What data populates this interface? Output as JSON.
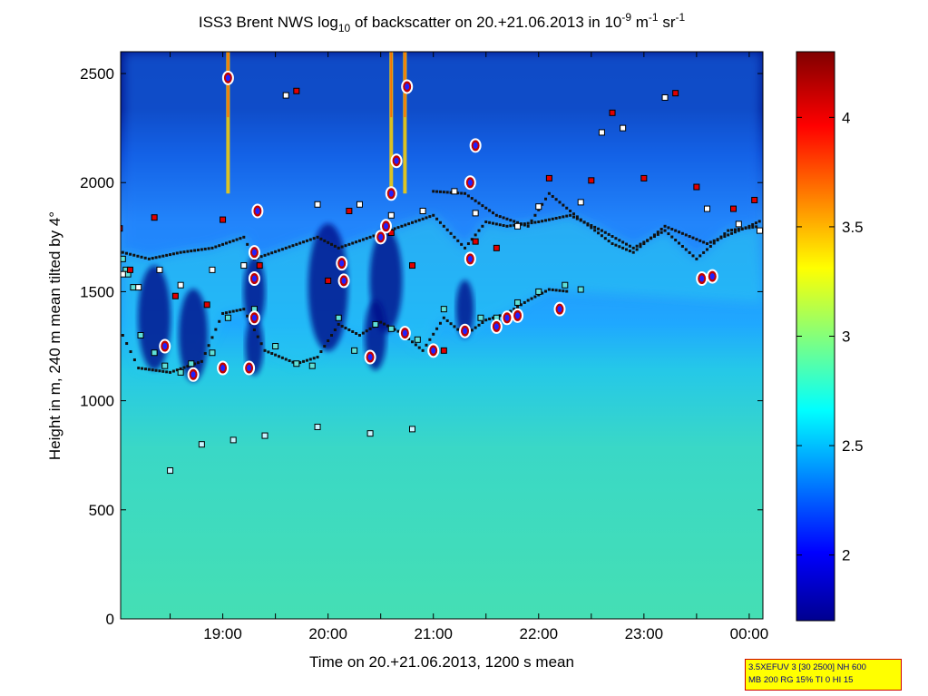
{
  "chart_data": {
    "type": "heatmap",
    "title": {
      "pre": "ISS3 Brent NWS log",
      "sub1": "10",
      "mid1": " of backscatter on 20.+21.06.2013 in 10",
      "sup1": "-9",
      "mid2": " m",
      "sup2": "-1",
      "mid3": " sr",
      "sup3": "-1"
    },
    "xlabel": "Time on 20.+21.06.2013, 1200 s mean",
    "ylabel": "Height in m, 240 m mean tilted by 4°",
    "x_ticks": [
      "19:00",
      "20:00",
      "21:00",
      "22:00",
      "23:00",
      "00:00"
    ],
    "x_tick_hours": [
      19,
      20,
      21,
      22,
      23,
      24
    ],
    "x_range_hours": [
      18.03,
      24.13
    ],
    "y_ticks": [
      "0",
      "500",
      "1000",
      "1500",
      "2000",
      "2500"
    ],
    "y_tick_values": [
      0,
      500,
      1000,
      1500,
      2000,
      2500
    ],
    "ylim": [
      0,
      2600
    ],
    "colorbar": {
      "ticks": [
        "2",
        "2.5",
        "3",
        "3.5",
        "4"
      ],
      "tick_values": [
        2,
        2.5,
        3,
        3.5,
        4
      ],
      "range": [
        1.7,
        4.3
      ],
      "colormap": "jet"
    },
    "layer_top_height_m": [
      [
        18.05,
        1680
      ],
      [
        18.3,
        1650
      ],
      [
        18.6,
        1680
      ],
      [
        18.9,
        1700
      ],
      [
        19.2,
        1750
      ],
      [
        19.3,
        1650
      ],
      [
        19.6,
        1700
      ],
      [
        19.9,
        1750
      ],
      [
        20.1,
        1700
      ],
      [
        20.4,
        1750
      ],
      [
        20.7,
        1800
      ],
      [
        21.0,
        1850
      ],
      [
        21.3,
        1700
      ],
      [
        21.5,
        1820
      ],
      [
        21.7,
        1800
      ],
      [
        22.0,
        1820
      ],
      [
        22.3,
        1850
      ],
      [
        22.6,
        1780
      ],
      [
        22.9,
        1700
      ],
      [
        23.2,
        1780
      ],
      [
        23.5,
        1650
      ],
      [
        23.8,
        1780
      ],
      [
        24.1,
        1800
      ]
    ],
    "cloud_base_height_m": [
      [
        18.05,
        1300
      ],
      [
        18.2,
        1150
      ],
      [
        18.5,
        1130
      ],
      [
        18.8,
        1180
      ],
      [
        19.0,
        1400
      ],
      [
        19.2,
        1420
      ],
      [
        19.4,
        1230
      ],
      [
        19.7,
        1170
      ],
      [
        19.9,
        1200
      ],
      [
        20.1,
        1350
      ],
      [
        20.3,
        1300
      ],
      [
        20.5,
        1360
      ],
      [
        20.7,
        1310
      ],
      [
        20.9,
        1230
      ],
      [
        21.1,
        1380
      ],
      [
        21.3,
        1300
      ],
      [
        21.5,
        1370
      ],
      [
        21.7,
        1400
      ],
      [
        21.9,
        1460
      ],
      [
        22.1,
        1510
      ],
      [
        22.3,
        1500
      ]
    ],
    "upper_layer_height_m": [
      [
        21.0,
        1960
      ],
      [
        21.3,
        1950
      ],
      [
        21.6,
        1850
      ],
      [
        21.9,
        1800
      ],
      [
        22.1,
        1950
      ],
      [
        22.4,
        1830
      ],
      [
        22.7,
        1720
      ],
      [
        22.9,
        1680
      ],
      [
        23.2,
        1800
      ],
      [
        23.6,
        1720
      ],
      [
        24.0,
        1800
      ],
      [
        24.13,
        1830
      ]
    ],
    "high_backscatter_columns_h": [
      19.05,
      20.6,
      20.73
    ],
    "low_level_layer_m": [
      [
        18.5,
        680
      ],
      [
        18.8,
        800
      ],
      [
        19.1,
        820
      ],
      [
        19.4,
        840
      ],
      [
        19.9,
        880
      ],
      [
        20.4,
        850
      ],
      [
        20.8,
        870
      ]
    ],
    "marked_points": [
      [
        18.05,
        1650
      ],
      [
        18.08,
        1600
      ],
      [
        18.1,
        1580
      ],
      [
        18.15,
        1520
      ],
      [
        18.22,
        1300
      ],
      [
        18.35,
        1220
      ],
      [
        18.45,
        1160
      ],
      [
        18.6,
        1130
      ],
      [
        18.7,
        1170
      ],
      [
        18.9,
        1220
      ],
      [
        19.05,
        1380
      ],
      [
        19.3,
        1420
      ],
      [
        19.5,
        1250
      ],
      [
        19.7,
        1170
      ],
      [
        19.85,
        1160
      ],
      [
        20.1,
        1380
      ],
      [
        20.25,
        1230
      ],
      [
        20.45,
        1350
      ],
      [
        20.6,
        1330
      ],
      [
        20.85,
        1280
      ],
      [
        21.1,
        1420
      ],
      [
        21.3,
        1330
      ],
      [
        21.45,
        1380
      ],
      [
        21.6,
        1380
      ],
      [
        21.8,
        1450
      ],
      [
        22.0,
        1500
      ],
      [
        22.25,
        1530
      ],
      [
        22.4,
        1510
      ]
    ],
    "red_points": [
      [
        18.02,
        1790
      ],
      [
        18.12,
        1600
      ],
      [
        18.35,
        1840
      ],
      [
        18.55,
        1480
      ],
      [
        18.85,
        1440
      ],
      [
        19.0,
        1830
      ],
      [
        19.35,
        1620
      ],
      [
        19.7,
        2420
      ],
      [
        20.0,
        1550
      ],
      [
        20.2,
        1870
      ],
      [
        20.6,
        1770
      ],
      [
        20.8,
        1620
      ],
      [
        21.1,
        1230
      ],
      [
        21.4,
        1730
      ],
      [
        21.6,
        1700
      ],
      [
        22.1,
        2020
      ],
      [
        22.5,
        2010
      ],
      [
        22.7,
        2320
      ],
      [
        23.0,
        2020
      ],
      [
        23.3,
        2410
      ],
      [
        23.5,
        1980
      ],
      [
        23.85,
        1880
      ],
      [
        24.05,
        1920
      ]
    ],
    "white_points": [
      [
        18.05,
        1580
      ],
      [
        18.2,
        1520
      ],
      [
        18.4,
        1600
      ],
      [
        18.6,
        1530
      ],
      [
        18.9,
        1600
      ],
      [
        19.2,
        1620
      ],
      [
        19.6,
        2400
      ],
      [
        19.9,
        1900
      ],
      [
        20.3,
        1900
      ],
      [
        20.6,
        1850
      ],
      [
        20.9,
        1870
      ],
      [
        21.2,
        1960
      ],
      [
        21.4,
        1860
      ],
      [
        21.8,
        1800
      ],
      [
        22.0,
        1890
      ],
      [
        22.4,
        1910
      ],
      [
        22.6,
        2230
      ],
      [
        22.8,
        2250
      ],
      [
        23.2,
        2390
      ],
      [
        23.6,
        1880
      ],
      [
        23.9,
        1810
      ],
      [
        24.1,
        1780
      ]
    ],
    "cloud_ring_points": [
      [
        19.05,
        2480
      ],
      [
        19.33,
        1870
      ],
      [
        19.3,
        1680
      ],
      [
        19.3,
        1560
      ],
      [
        19.3,
        1380
      ],
      [
        19.25,
        1150
      ],
      [
        19.0,
        1150
      ],
      [
        18.72,
        1120
      ],
      [
        18.45,
        1250
      ],
      [
        20.4,
        1200
      ],
      [
        20.5,
        1750
      ],
      [
        20.55,
        1800
      ],
      [
        20.6,
        1950
      ],
      [
        20.65,
        2100
      ],
      [
        20.75,
        2440
      ],
      [
        21.4,
        2170
      ],
      [
        21.35,
        2000
      ],
      [
        21.35,
        1650
      ],
      [
        21.3,
        1320
      ],
      [
        21.6,
        1340
      ],
      [
        21.7,
        1380
      ],
      [
        22.2,
        1420
      ],
      [
        23.55,
        1560
      ],
      [
        23.65,
        1570
      ],
      [
        20.15,
        1550
      ],
      [
        20.13,
        1630
      ],
      [
        21.0,
        1230
      ],
      [
        20.73,
        1310
      ],
      [
        21.8,
        1390
      ]
    ]
  },
  "info_box": {
    "line1": "3.5XEFUV 3 [30 2500] NH 600",
    "line2": "MB 200 RG 15% TI 0 HI 15"
  }
}
